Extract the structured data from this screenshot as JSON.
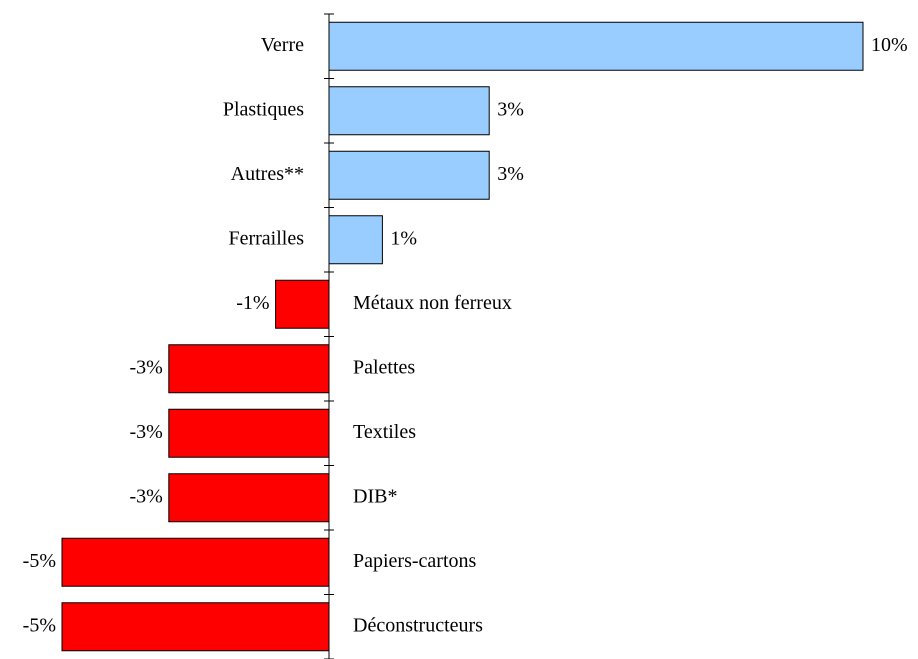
{
  "chart_data": {
    "type": "bar",
    "orientation": "horizontal",
    "categories": [
      "Verre",
      "Plastiques",
      "Autres**",
      "Ferrailles",
      "Métaux non ferreux",
      "Palettes",
      "Textiles",
      "DIB*",
      "Papiers-cartons",
      "Déconstructeurs"
    ],
    "values": [
      10,
      3,
      3,
      1,
      -1,
      -3,
      -3,
      -3,
      -5,
      -5
    ],
    "value_labels": [
      "10%",
      "3%",
      "3%",
      "1%",
      "-1%",
      "-3%",
      "-3%",
      "-3%",
      "-5%",
      "-5%"
    ],
    "colors": [
      "#99ccff",
      "#99ccff",
      "#99ccff",
      "#99ccff",
      "#ff0000",
      "#ff0000",
      "#ff0000",
      "#ff0000",
      "#ff0000",
      "#ff0000"
    ],
    "xlim": [
      -5,
      10
    ]
  }
}
